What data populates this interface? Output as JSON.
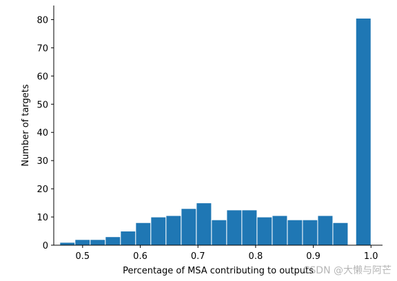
{
  "chart_data": {
    "type": "bar",
    "xlabel": "Percentage of MSA contributing to outputs",
    "ylabel": "Number of targets",
    "xlim": [
      0.45,
      1.02
    ],
    "ylim": [
      0,
      85
    ],
    "xticks": [
      "0.5",
      "0.6",
      "0.7",
      "0.8",
      "0.9",
      "1.0"
    ],
    "yticks": [
      "0",
      "10",
      "20",
      "30",
      "40",
      "50",
      "60",
      "70",
      "80"
    ],
    "bin_width": 0.0263,
    "bins": [
      {
        "x0": 0.4605,
        "value": 1
      },
      {
        "x0": 0.4868,
        "value": 2
      },
      {
        "x0": 0.5131,
        "value": 2
      },
      {
        "x0": 0.5394,
        "value": 3
      },
      {
        "x0": 0.5657,
        "value": 5
      },
      {
        "x0": 0.592,
        "value": 8
      },
      {
        "x0": 0.6183,
        "value": 10
      },
      {
        "x0": 0.6446,
        "value": 10.5
      },
      {
        "x0": 0.6709,
        "value": 13
      },
      {
        "x0": 0.6972,
        "value": 15
      },
      {
        "x0": 0.7235,
        "value": 9
      },
      {
        "x0": 0.7498,
        "value": 12.5
      },
      {
        "x0": 0.7761,
        "value": 12.5
      },
      {
        "x0": 0.8024,
        "value": 10
      },
      {
        "x0": 0.8287,
        "value": 10.5
      },
      {
        "x0": 0.855,
        "value": 9
      },
      {
        "x0": 0.8813,
        "value": 9
      },
      {
        "x0": 0.9076,
        "value": 10.5
      },
      {
        "x0": 0.9339,
        "value": 8
      },
      {
        "x0": 0.9737,
        "value": 80.5
      }
    ],
    "bar_color": "#1f77b4",
    "edge_color": "#ffffff",
    "grid": false
  },
  "watermark": "CSDN @大懒与阿芒"
}
